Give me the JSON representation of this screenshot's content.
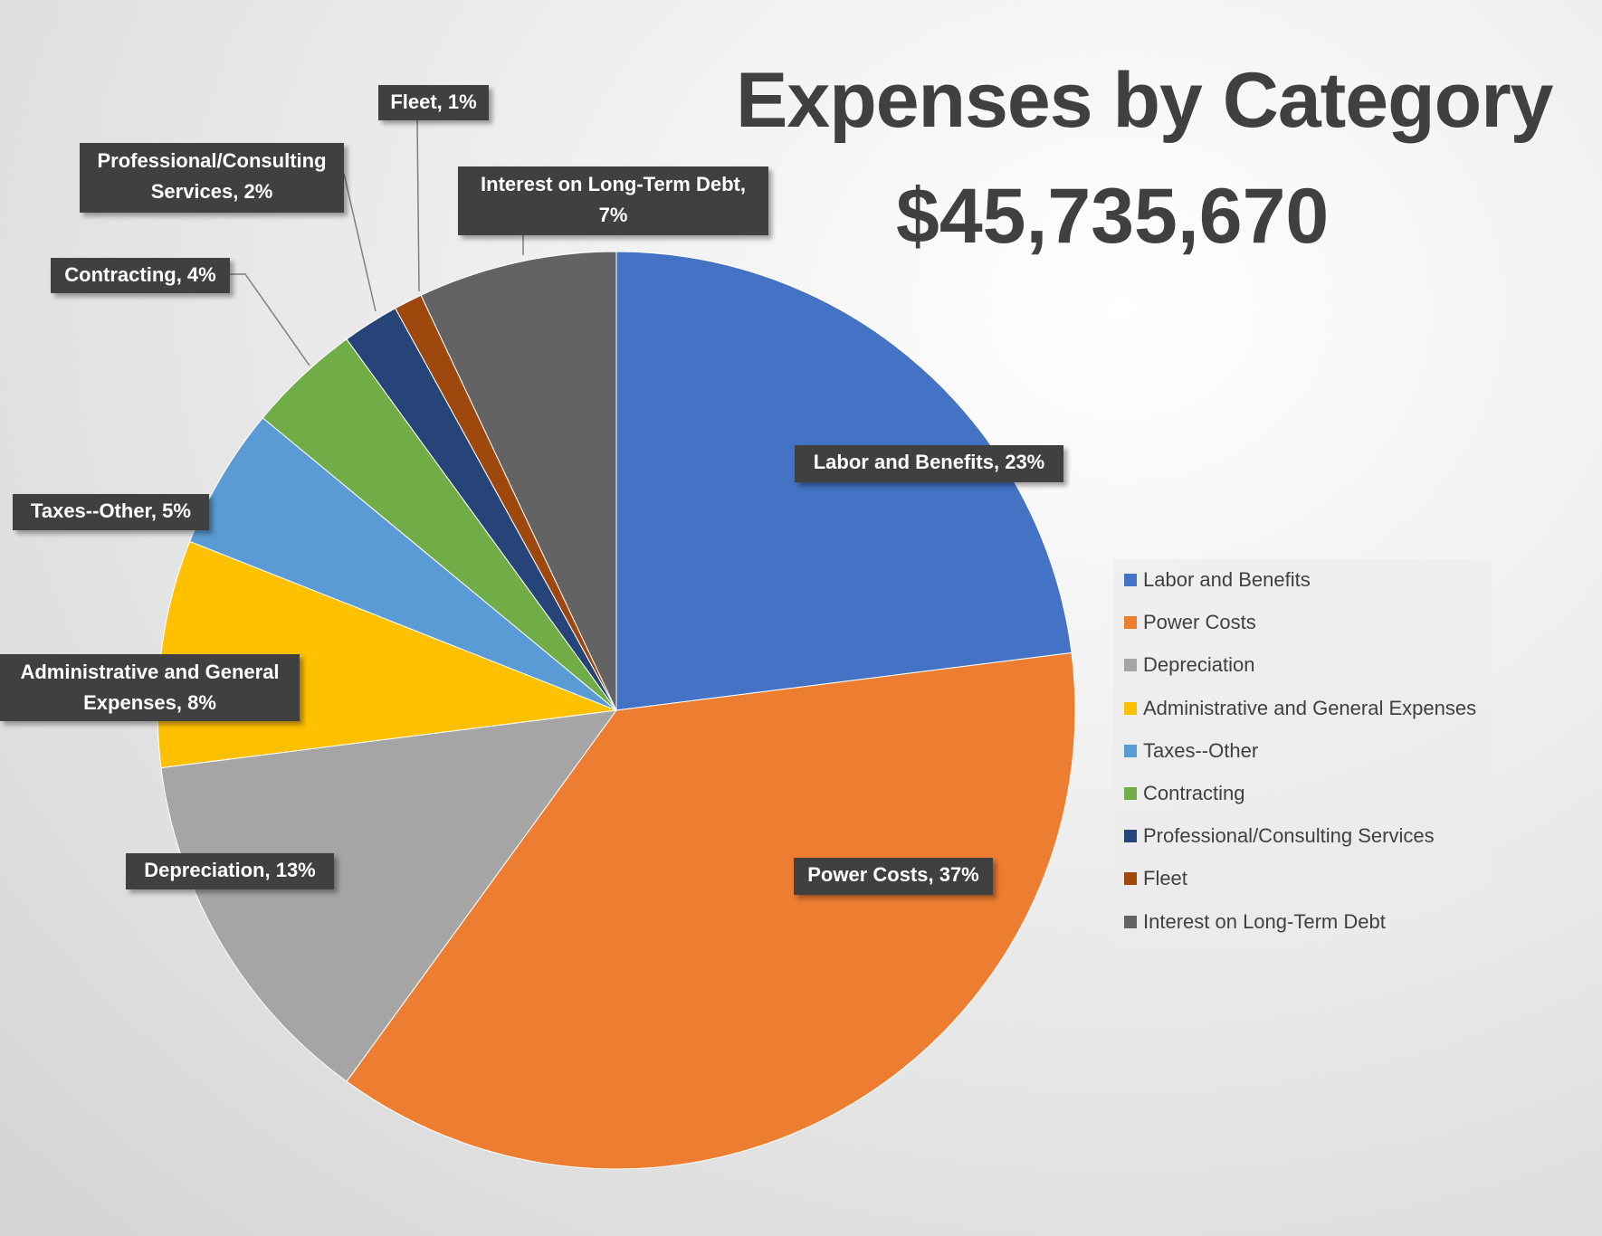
{
  "chart_data": {
    "type": "pie",
    "title": "Expenses by Category",
    "subtitle": "$45,735,670",
    "start_angle": "12 o'clock, clockwise",
    "legend_position": "right",
    "slices": [
      {
        "name": "Labor and Benefits",
        "value": 23,
        "label": "Labor and Benefits, 23%",
        "color": "#4472C4"
      },
      {
        "name": "Power Costs",
        "value": 37,
        "label": "Power Costs, 37%",
        "color": "#ED7D31"
      },
      {
        "name": "Depreciation",
        "value": 13,
        "label": "Depreciation, 13%",
        "color": "#A5A5A5"
      },
      {
        "name": "Administrative and General Expenses",
        "value": 8,
        "label": "Administrative and General Expenses, 8%",
        "color": "#FFC000"
      },
      {
        "name": "Taxes--Other",
        "value": 5,
        "label": "Taxes--Other, 5%",
        "color": "#5B9BD5"
      },
      {
        "name": "Contracting",
        "value": 4,
        "label": "Contracting, 4%",
        "color": "#70AD47"
      },
      {
        "name": "Professional/Consulting Services",
        "value": 2,
        "label": "Professional/Consulting Services, 2%",
        "color": "#264478"
      },
      {
        "name": "Fleet",
        "value": 1,
        "label": "Fleet, 1%",
        "color": "#9E480E"
      },
      {
        "name": "Interest on Long-Term Debt",
        "value": 7,
        "label": "Interest on Long-Term Debt, 7%",
        "color": "#636363"
      }
    ]
  }
}
